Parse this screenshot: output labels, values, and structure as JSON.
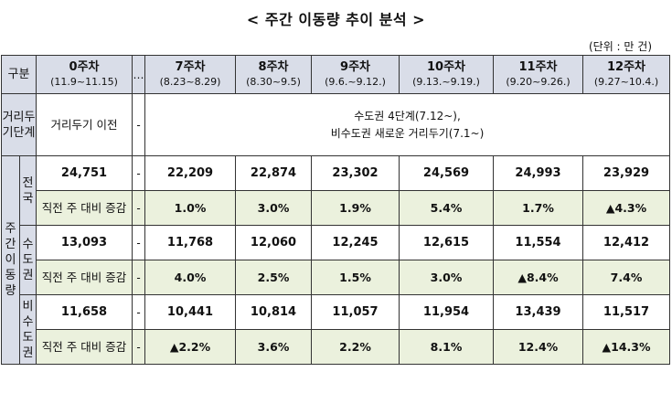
{
  "title": "< 주간 이동량 추이 분석 >",
  "unit": "(단위 : 만 건)",
  "header": {
    "corner": "구분",
    "dots": "…",
    "weeks": [
      {
        "label": "0주차",
        "dates": "(11.9~11.15)"
      },
      {
        "label": "7주차",
        "dates": "(8.23~8.29)"
      },
      {
        "label": "8주차",
        "dates": "(8.30~9.5)"
      },
      {
        "label": "9주차",
        "dates": "(9.6.~9.12.)"
      },
      {
        "label": "10주차",
        "dates": "(9.13.~9.19.)"
      },
      {
        "label": "11주차",
        "dates": "(9.20~9.26.)"
      },
      {
        "label": "12주차",
        "dates": "(9.27~10.4.)"
      }
    ]
  },
  "distancing": {
    "label": "거리두기단계",
    "week0": "거리두기 이전",
    "dash": "-",
    "line1": "수도권 4단계(7.12~),",
    "line2": "비수도권 새로운 거리두기(7.1~)"
  },
  "group_label": "주간이동량",
  "change_label": "직전 주 대비 증감",
  "dash": "-",
  "regions": [
    {
      "name": "전국",
      "volumes": [
        "24,751",
        "22,209",
        "22,874",
        "23,302",
        "24,569",
        "24,993",
        "23,929"
      ],
      "changes": [
        "1.0%",
        "3.0%",
        "1.9%",
        "5.4%",
        "1.7%",
        "▲4.3%"
      ]
    },
    {
      "name": "수도권",
      "volumes": [
        "13,093",
        "11,768",
        "12,060",
        "12,245",
        "12,615",
        "11,554",
        "12,412"
      ],
      "changes": [
        "4.0%",
        "2.5%",
        "1.5%",
        "3.0%",
        "▲8.4%",
        "7.4%"
      ]
    },
    {
      "name": "비수도권",
      "volumes": [
        "11,658",
        "10,441",
        "10,814",
        "11,057",
        "11,954",
        "13,439",
        "11,517"
      ],
      "changes": [
        "▲2.2%",
        "3.6%",
        "2.2%",
        "8.1%",
        "12.4%",
        "▲14.3%"
      ]
    }
  ]
}
